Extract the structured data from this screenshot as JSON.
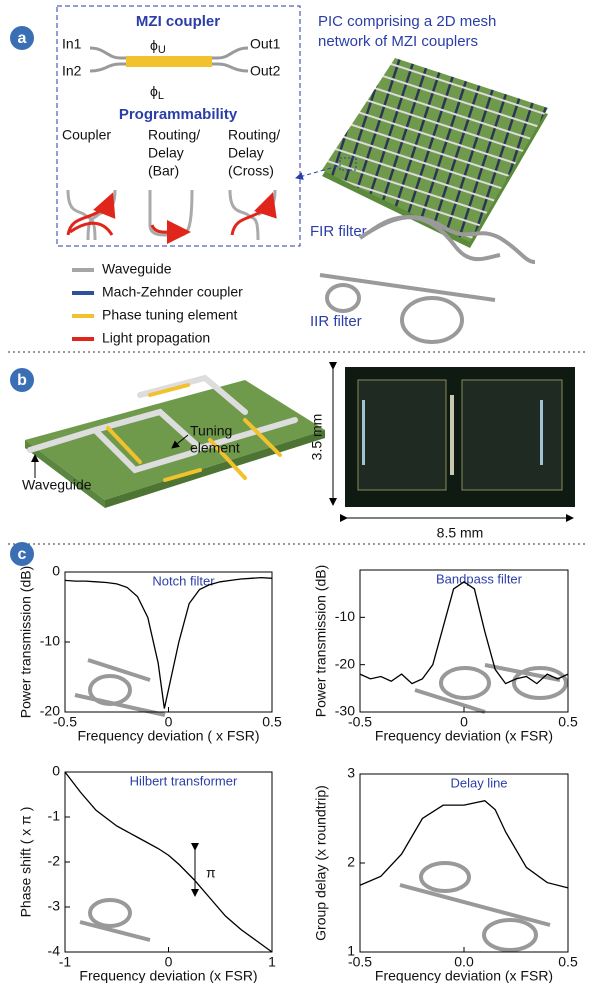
{
  "figure": {
    "panel_labels": [
      "a",
      "b",
      "c"
    ],
    "mzi": {
      "title": "MZI coupler",
      "phi_upper": {
        "symbol": "ϕ",
        "sub": "U"
      },
      "phi_lower": {
        "symbol": "ϕ",
        "sub": "L"
      },
      "in1": "In1",
      "in2": "In2",
      "out1": "Out1",
      "out2": "Out2"
    },
    "programmability": {
      "title": "Programmability",
      "coupler": [
        "Coupler"
      ],
      "bar": [
        "Routing/",
        "Delay",
        "(Bar)"
      ],
      "cross": [
        "Routing/",
        "Delay",
        "(Cross)"
      ]
    },
    "legend": [
      {
        "label": "Waveguide",
        "color": "#a6a6a6"
      },
      {
        "label": "Mach-Zehnder coupler",
        "color": "#2f4f9f"
      },
      {
        "label": "Phase tuning element",
        "color": "#f2c12e"
      },
      {
        "label": "Light propagation",
        "color": "#e0261b"
      }
    ],
    "pic_title": [
      "PIC comprising a 2D mesh",
      "network of MZI couplers"
    ],
    "fir": "FIR filter",
    "iir": "IIR filter",
    "panel_b": {
      "tuning": [
        "Tuning",
        "element"
      ],
      "waveguide": "Waveguide",
      "height": "3.5 mm",
      "width": "8.5 mm"
    }
  },
  "chart_data": [
    {
      "type": "line",
      "title": "Notch filter",
      "xlabel": "Frequency deviation ( x FSR)",
      "ylabel": "Power transmission (dB)",
      "x": [
        -0.5,
        -0.45,
        -0.4,
        -0.35,
        -0.3,
        -0.25,
        -0.2,
        -0.15,
        -0.1,
        -0.05,
        -0.02,
        0.05,
        0.1,
        0.15,
        0.2,
        0.25,
        0.3,
        0.35,
        0.4,
        0.45,
        0.5
      ],
      "values": [
        -1.2,
        -1.3,
        -1.3,
        -1.4,
        -1.5,
        -1.7,
        -2.2,
        -3.5,
        -6.5,
        -13,
        -19.5,
        -10,
        -4.5,
        -2.5,
        -1.8,
        -1.4,
        -1.2,
        -1.0,
        -0.9,
        -0.8,
        -0.9
      ],
      "color": "#000000",
      "xlim": [
        -0.5,
        0.5
      ],
      "ylim": [
        -20,
        0
      ],
      "xticks": [
        -0.5,
        0,
        0.5
      ],
      "yticks": [
        0,
        -10,
        -20
      ]
    },
    {
      "type": "line",
      "title": "Bandpass filter",
      "xlabel": "Frequency deviation (x FSR)",
      "ylabel": "Power transmission (dB)",
      "x": [
        -0.5,
        -0.45,
        -0.4,
        -0.35,
        -0.3,
        -0.25,
        -0.2,
        -0.15,
        -0.1,
        -0.05,
        0,
        0.05,
        0.1,
        0.15,
        0.2,
        0.25,
        0.3,
        0.35,
        0.4,
        0.45,
        0.5
      ],
      "values": [
        -22,
        -23,
        -22.5,
        -23.5,
        -22,
        -24,
        -23,
        -20,
        -12,
        -4,
        -2.5,
        -4,
        -13,
        -21,
        -24,
        -23,
        -22.5,
        -24,
        -22,
        -23,
        -22
      ],
      "color": "#000000",
      "xlim": [
        -0.5,
        0.5
      ],
      "ylim": [
        -30,
        0
      ],
      "xticks": [
        -0.5,
        0,
        0.5
      ],
      "yticks": [
        -10,
        -20,
        -30
      ]
    },
    {
      "type": "line",
      "title": "Hilbert transformer",
      "xlabel": "Frequency deviation (x FSR)",
      "ylabel": "Phase shift ( x π )",
      "annotation": "π",
      "x": [
        -1,
        -0.85,
        -0.7,
        -0.5,
        -0.3,
        -0.1,
        0,
        0.1,
        0.25,
        0.4,
        0.55,
        0.7,
        0.85,
        1
      ],
      "values": [
        0,
        -0.45,
        -0.85,
        -1.2,
        -1.45,
        -1.7,
        -1.85,
        -2.05,
        -2.4,
        -2.8,
        -3.2,
        -3.5,
        -3.75,
        -4
      ],
      "color": "#000000",
      "xlim": [
        -1,
        1
      ],
      "ylim": [
        -4,
        0
      ],
      "xticks": [
        -1,
        0,
        1
      ],
      "yticks": [
        0,
        -1,
        -2,
        -3,
        -4
      ]
    },
    {
      "type": "line",
      "title": "Delay line",
      "xlabel": "Frequency deviation (x FSR)",
      "ylabel": "Group delay (x roundtrip)",
      "x": [
        -0.5,
        -0.4,
        -0.3,
        -0.2,
        -0.1,
        0,
        0.1,
        0.15,
        0.2,
        0.3,
        0.4,
        0.5
      ],
      "values": [
        1.75,
        1.85,
        2.1,
        2.5,
        2.65,
        2.65,
        2.7,
        2.6,
        2.35,
        1.95,
        1.78,
        1.72
      ],
      "color": "#000000",
      "xlim": [
        -0.5,
        0.5
      ],
      "ylim": [
        1,
        3
      ],
      "xticks": [
        -0.5,
        {
          "value": 0,
          "label": "0.0"
        },
        0.5
      ],
      "yticks": [
        1,
        2,
        3
      ]
    }
  ]
}
